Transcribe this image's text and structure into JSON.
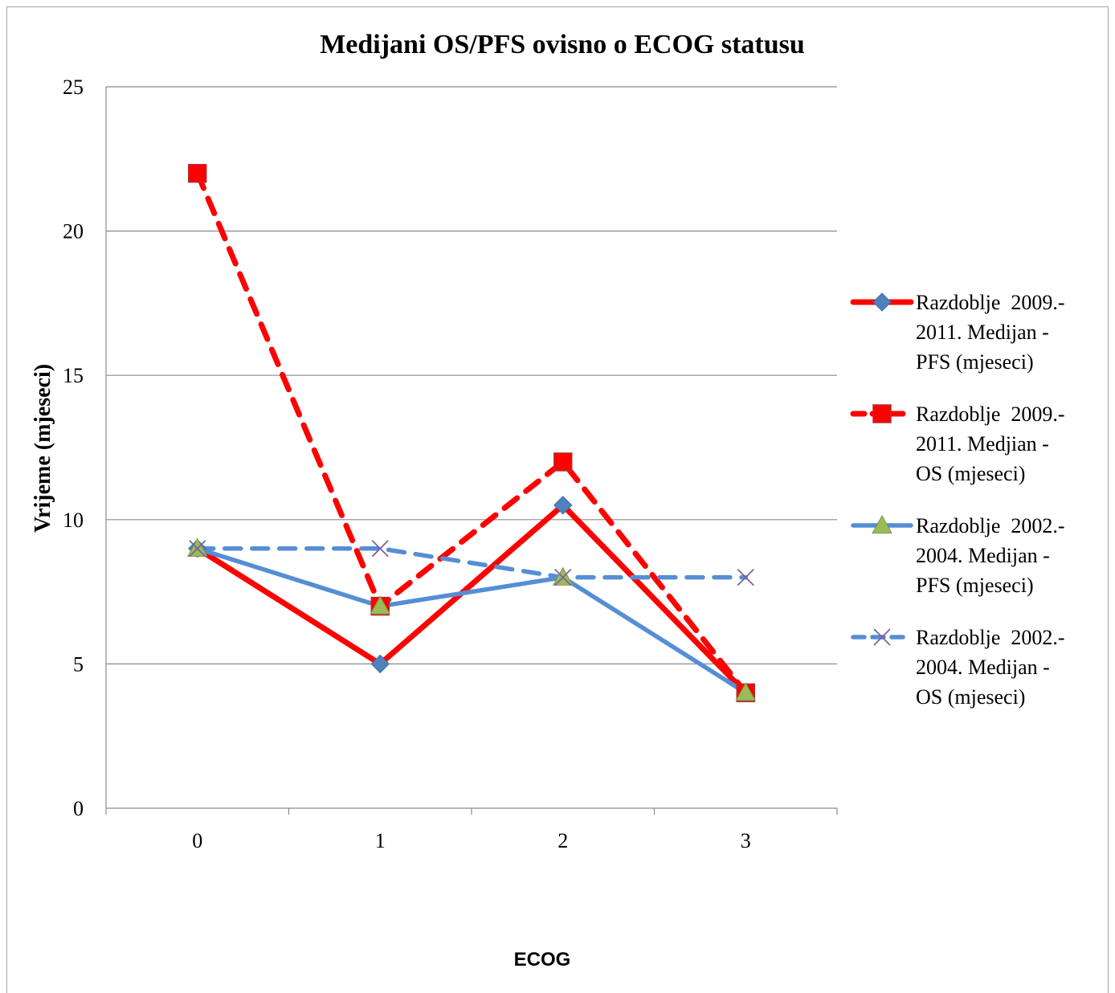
{
  "chart_data": {
    "type": "line",
    "title": "Medijani OS/PFS ovisno o ECOG statusu",
    "xlabel": "ECOG",
    "ylabel": "Vrijeme (mjeseci)",
    "categories": [
      "0",
      "1",
      "2",
      "3"
    ],
    "ylim": [
      0,
      25
    ],
    "yticks": [
      "0",
      "5",
      "10",
      "15",
      "20",
      "25"
    ],
    "grid": true,
    "legend_position": "right",
    "series": [
      {
        "name_lines": [
          "Razdoblje  2009.-",
          "2011. Medijan -",
          "PFS (mjeseci)"
        ],
        "values": [
          9,
          5,
          10.5,
          4
        ],
        "line_color": "#ff0000",
        "line_style": "solid",
        "marker": "diamond",
        "marker_color": "#4f81bd"
      },
      {
        "name_lines": [
          "Razdoblje  2009.-",
          "2011. Medjian -",
          "OS (mjeseci)"
        ],
        "values": [
          22,
          7,
          12,
          4
        ],
        "line_color": "#ff0000",
        "line_style": "dashed",
        "marker": "square",
        "marker_color": "#ff0000"
      },
      {
        "name_lines": [
          "Razdoblje  2002.-",
          "2004. Medijan -",
          "PFS (mjeseci)"
        ],
        "values": [
          9,
          7,
          8,
          4
        ],
        "line_color": "#558ed5",
        "line_style": "solid",
        "marker": "triangle",
        "marker_color": "#9bbb59"
      },
      {
        "name_lines": [
          "Razdoblje  2002.-",
          "2004. Medijan -",
          "OS (mjeseci)"
        ],
        "values": [
          9,
          9,
          8,
          8
        ],
        "line_color": "#558ed5",
        "line_style": "dashed",
        "marker": "x",
        "marker_color": "#7f5fa0"
      }
    ]
  }
}
